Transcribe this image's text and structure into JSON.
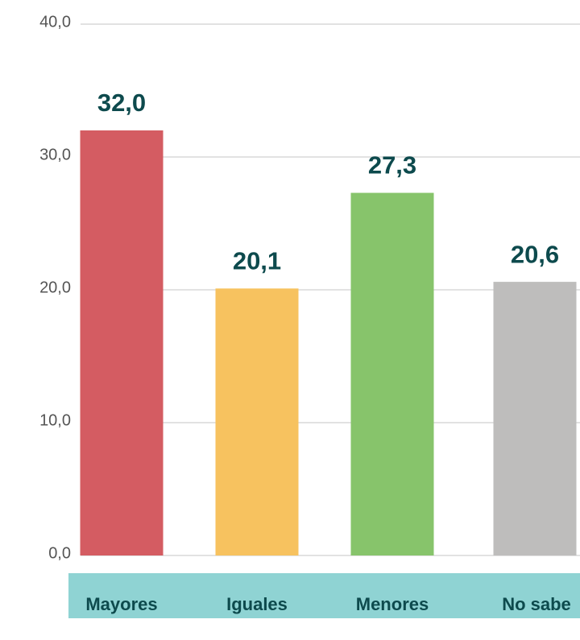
{
  "chart_data": {
    "type": "bar",
    "categories": [
      "Mayores",
      "Iguales",
      "Menores",
      "No sabe"
    ],
    "values": [
      32.0,
      20.1,
      27.3,
      20.6
    ],
    "value_labels": [
      "32,0",
      "20,1",
      "27,3",
      "20,6"
    ],
    "colors": [
      "#d45c62",
      "#f7c25f",
      "#87c46b",
      "#bebdbc"
    ],
    "ylim": [
      0,
      40
    ],
    "yticks": [
      {
        "value": 0,
        "label": "0,0"
      },
      {
        "value": 10,
        "label": "10,0"
      },
      {
        "value": 20,
        "label": "20,0"
      },
      {
        "value": 30,
        "label": "30,0"
      },
      {
        "value": 40,
        "label": "40,0"
      }
    ],
    "grid": true
  }
}
